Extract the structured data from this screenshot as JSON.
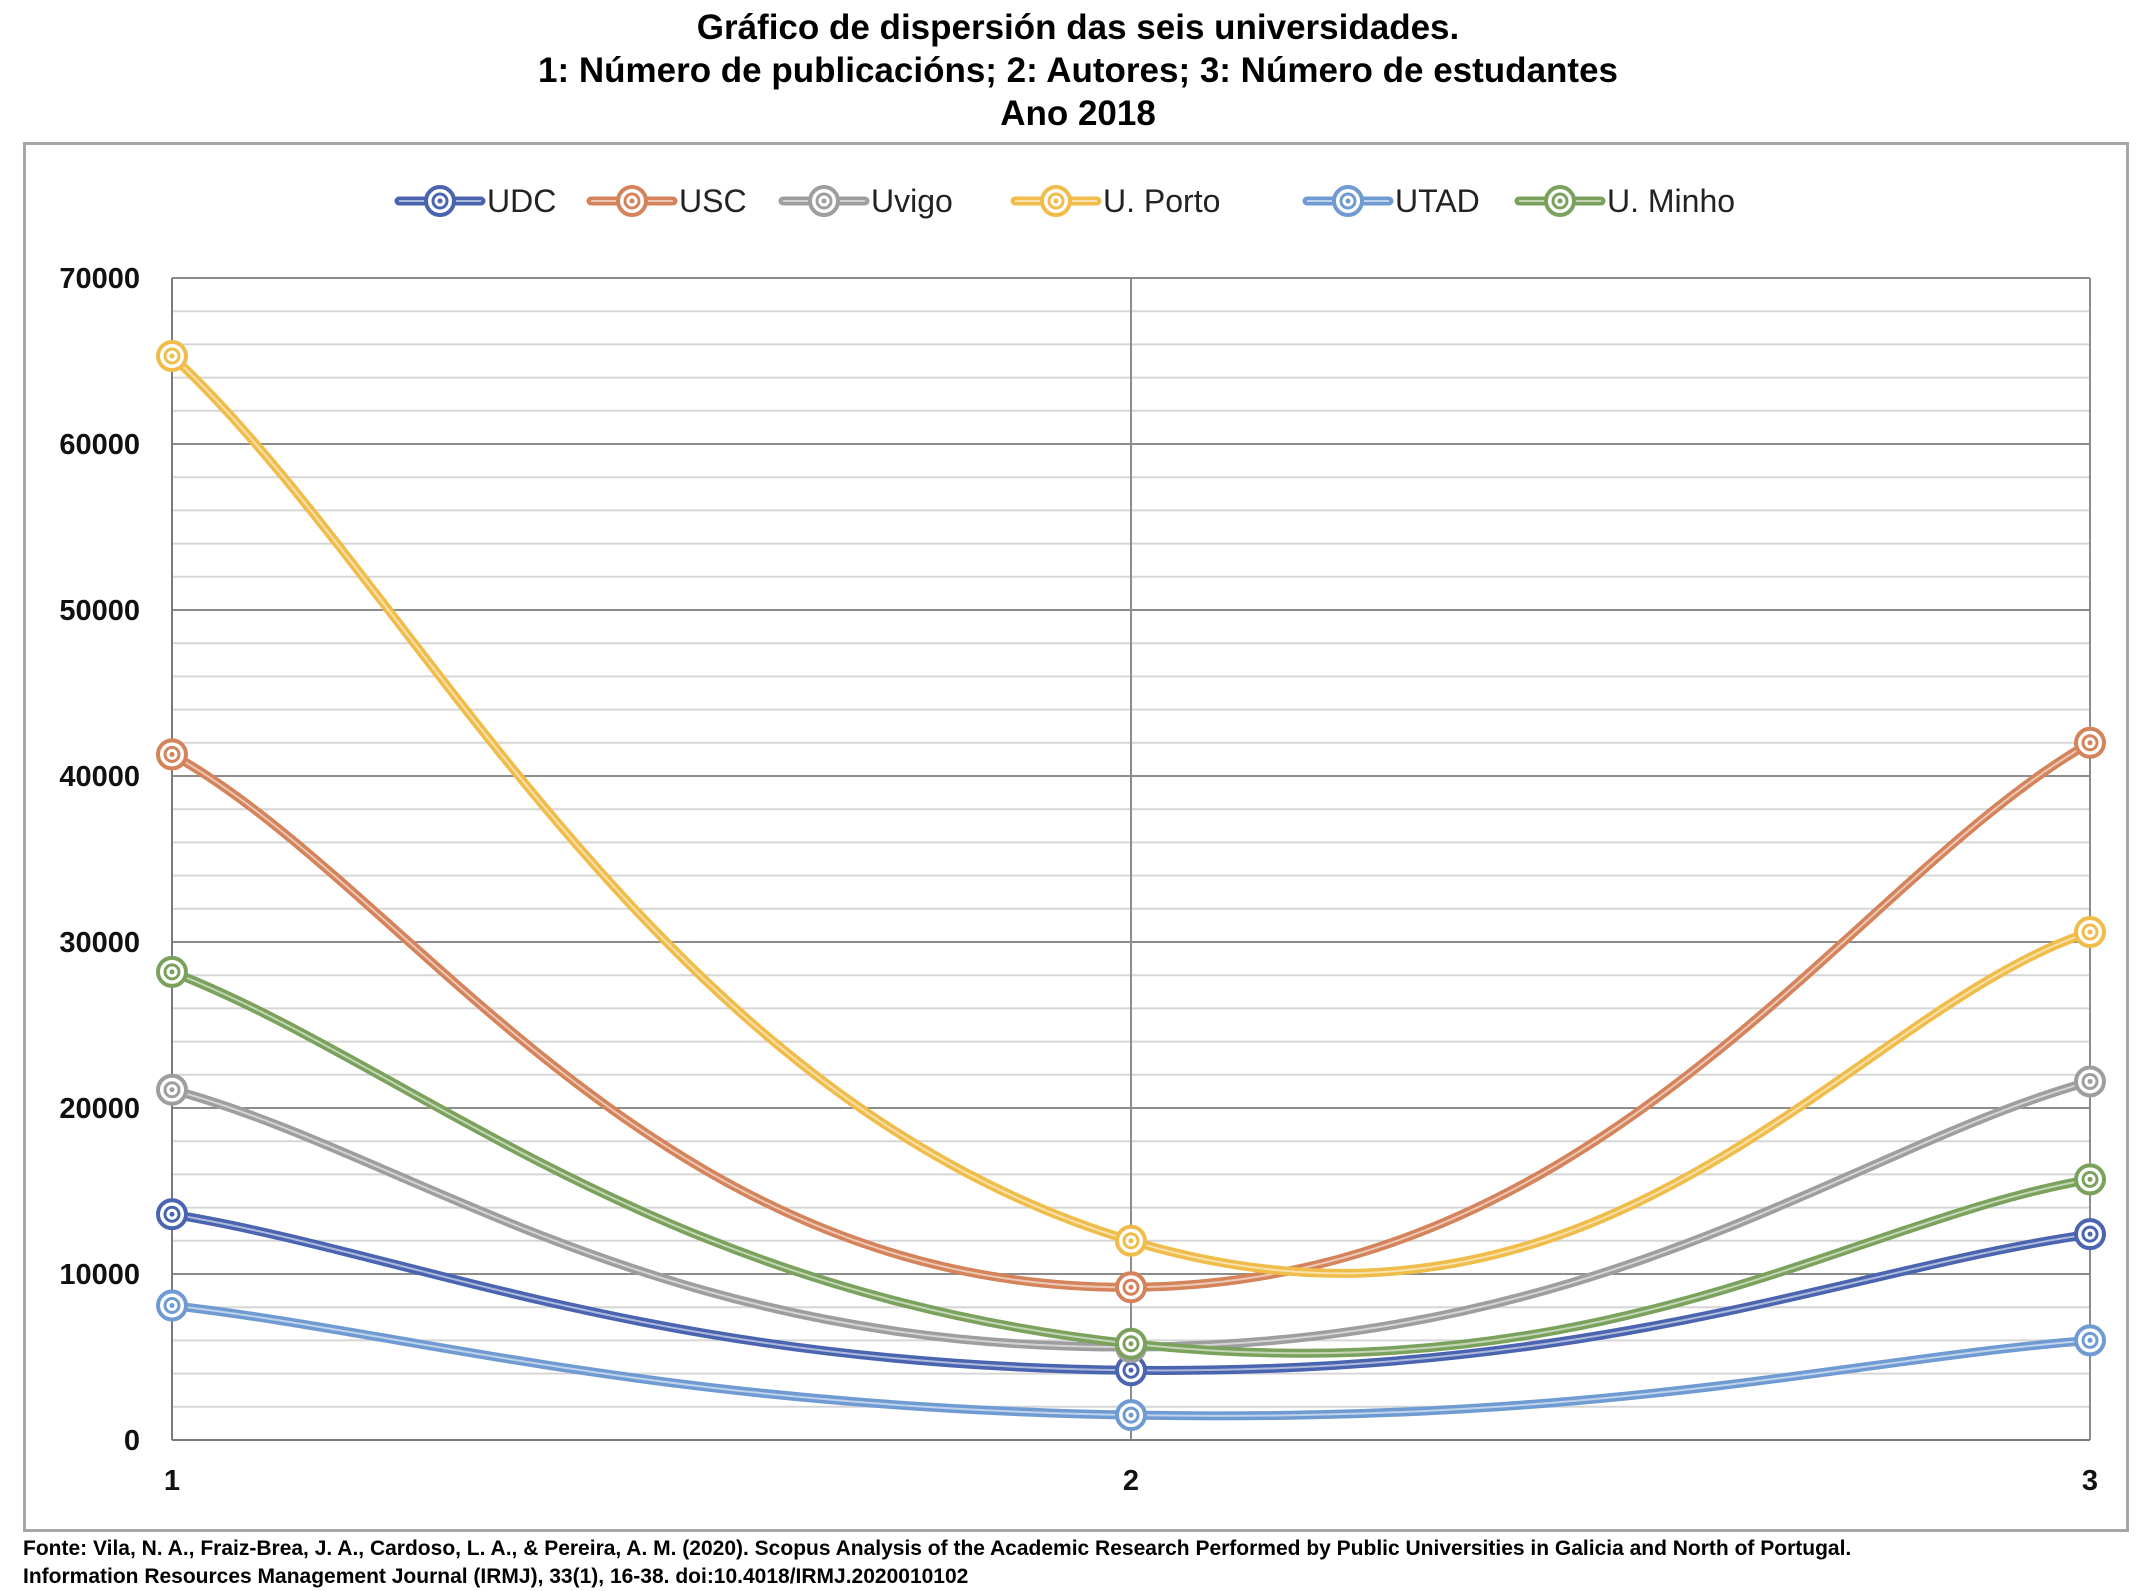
{
  "chart_data": {
    "type": "line",
    "title_lines": [
      "Gráfico de dispersión das seis universidades.",
      "1: Número de publicacións; 2: Autores; 3: Número de estudantes",
      "Ano 2018"
    ],
    "x": [
      1,
      2,
      3
    ],
    "x_tick_labels": [
      "1",
      "2",
      "3"
    ],
    "ylim": [
      0,
      70000
    ],
    "y_ticks": [
      0,
      10000,
      20000,
      30000,
      40000,
      50000,
      60000,
      70000
    ],
    "y_tick_labels": [
      "0",
      "10000",
      "20000",
      "30000",
      "40000",
      "50000",
      "60000",
      "70000"
    ],
    "y_minor_step": 2000,
    "grid": true,
    "legend_position": "top",
    "smooth": true,
    "series": [
      {
        "name": "UDC",
        "color": "#4a64b0",
        "values": [
          13600,
          4200,
          12400
        ]
      },
      {
        "name": "USC",
        "color": "#d4835a",
        "values": [
          41300,
          9200,
          42000
        ]
      },
      {
        "name": "Uvigo",
        "color": "#9e9e9e",
        "values": [
          21100,
          5600,
          21600
        ]
      },
      {
        "name": "U. Porto",
        "color": "#f0bc4a",
        "values": [
          65300,
          12000,
          30600
        ]
      },
      {
        "name": "UTAD",
        "color": "#6f9bd2",
        "values": [
          8100,
          1500,
          6000
        ]
      },
      {
        "name": "U. Minho",
        "color": "#7aa25c",
        "values": [
          28200,
          5800,
          15700
        ]
      }
    ]
  },
  "source_lines": [
    "Fonte: Vila, N. A., Fraiz-Brea, J. A., Cardoso, L. A., & Pereira, A. M. (2020). Scopus Analysis of the Academic Research Performed by Public Universities in Galicia and North of Portugal.",
    "Information Resources Management Journal (IRMJ), 33(1), 16-38. doi:10.4018/IRMJ.2020010102"
  ]
}
